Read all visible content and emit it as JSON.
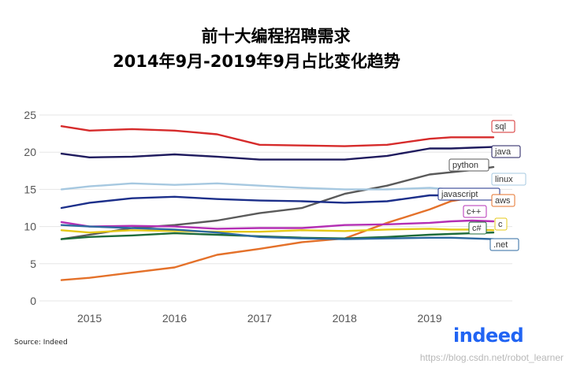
{
  "header": {
    "title_line1": "前十大编程招聘需求",
    "title_line2": "2014年9月-2019年9月占比变化趋势"
  },
  "footer": {
    "source": "Source: Indeed",
    "logo": "indeed",
    "watermark": "https://blog.csdn.net/robot_learner"
  },
  "chart_data": {
    "type": "line",
    "title": "前十大编程招聘需求 2014年9月-2019年9月占比变化趋势",
    "xlabel": "",
    "ylabel": "",
    "xlim": [
      2014.67,
      2019.75
    ],
    "ylim": [
      0,
      25
    ],
    "x_ticks": [
      2015,
      2016,
      2017,
      2018,
      2019
    ],
    "y_ticks": [
      0,
      5,
      10,
      15,
      20,
      25
    ],
    "grid": "horizontal",
    "legend": "direct labels at line ends (right)",
    "x": [
      2014.67,
      2015.0,
      2015.5,
      2016.0,
      2016.5,
      2017.0,
      2017.5,
      2018.0,
      2018.5,
      2019.0,
      2019.25,
      2019.5,
      2019.75
    ],
    "series": [
      {
        "name": "sql",
        "color": "#d62b2b",
        "values": [
          23.5,
          22.9,
          23.1,
          22.9,
          22.4,
          21.0,
          20.9,
          20.8,
          21.0,
          21.8,
          22.0,
          22.0,
          22.0
        ]
      },
      {
        "name": "java",
        "color": "#1f1b5e",
        "values": [
          19.8,
          19.3,
          19.4,
          19.7,
          19.4,
          19.0,
          19.0,
          19.0,
          19.5,
          20.5,
          20.5,
          20.6,
          20.7
        ]
      },
      {
        "name": "python",
        "color": "#5a5a5a",
        "values": [
          8.3,
          8.9,
          9.8,
          10.2,
          10.8,
          11.8,
          12.5,
          14.4,
          15.5,
          17.0,
          17.3,
          17.6,
          18.0
        ]
      },
      {
        "name": "linux",
        "color": "#a6c8e0",
        "values": [
          15.0,
          15.4,
          15.8,
          15.6,
          15.8,
          15.5,
          15.2,
          15.0,
          15.0,
          15.2,
          15.0,
          14.7,
          14.5
        ]
      },
      {
        "name": "javascript",
        "color": "#1c2f8a",
        "values": [
          12.5,
          13.2,
          13.8,
          14.0,
          13.7,
          13.5,
          13.4,
          13.2,
          13.4,
          14.2,
          14.2,
          14.3,
          14.3
        ]
      },
      {
        "name": "aws",
        "color": "#e4712a",
        "values": [
          2.8,
          3.1,
          3.8,
          4.5,
          6.2,
          7.0,
          7.9,
          8.4,
          10.5,
          12.3,
          13.4,
          13.9,
          14.0
        ]
      },
      {
        "name": "c++",
        "color": "#b42fb4",
        "values": [
          10.6,
          10.0,
          10.1,
          10.0,
          9.7,
          9.8,
          9.8,
          10.2,
          10.3,
          10.5,
          10.7,
          10.8,
          10.7
        ]
      },
      {
        "name": "c",
        "color": "#e4c817",
        "values": [
          9.5,
          9.2,
          9.5,
          9.4,
          9.3,
          9.3,
          9.5,
          9.4,
          9.6,
          9.7,
          9.6,
          9.6,
          9.5
        ]
      },
      {
        "name": "c#",
        "color": "#1d6b3a",
        "values": [
          8.3,
          8.6,
          8.8,
          9.1,
          8.9,
          8.7,
          8.5,
          8.4,
          8.6,
          8.9,
          9.0,
          9.1,
          9.2
        ]
      },
      {
        "name": ".net",
        "color": "#2e6aa0",
        "values": [
          10.2,
          10.0,
          9.8,
          9.6,
          9.2,
          8.6,
          8.4,
          8.3,
          8.4,
          8.5,
          8.5,
          8.4,
          8.3
        ]
      }
    ],
    "label_order_top_to_bottom": [
      "sql",
      "java",
      "python",
      "linux",
      "javascript",
      "aws",
      "c++",
      "c",
      "c#",
      ".net"
    ]
  }
}
